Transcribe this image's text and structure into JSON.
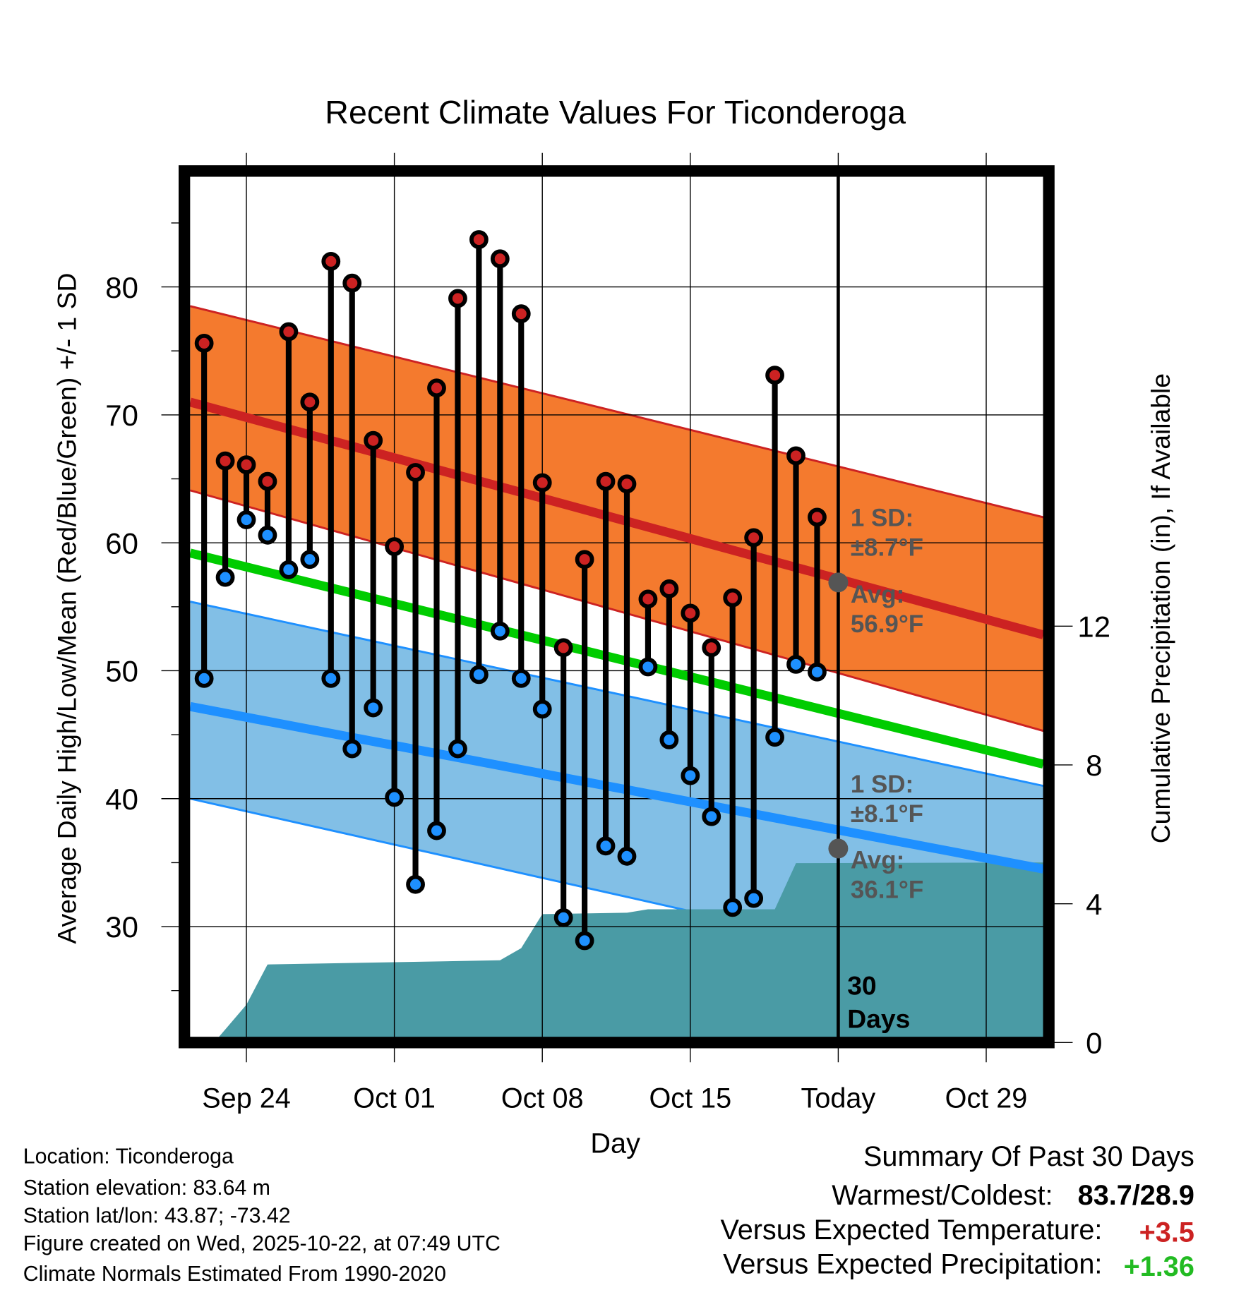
{
  "chart_data": {
    "type": "line",
    "title": "Recent Climate Values For Ticonderoga",
    "xlabel": "Day",
    "ylabel": "Average Daily High/Low/Mean (Red/Blue/Green) +/- 1 SD",
    "y2label": "Cumulative Precipitation (in), If Available",
    "x_unit": "days since Sep 22",
    "xlim": [
      -0.66,
      39.7
    ],
    "ylim": [
      21.3,
      88.6
    ],
    "y2lim": [
      0,
      25
    ],
    "grid": true,
    "x_ticks": [
      {
        "x": 2,
        "label": "Sep 24"
      },
      {
        "x": 9,
        "label": "Oct 01"
      },
      {
        "x": 16,
        "label": "Oct 08"
      },
      {
        "x": 23,
        "label": "Oct 15"
      },
      {
        "x": 30,
        "label": "Today"
      },
      {
        "x": 37,
        "label": "Oct 29"
      }
    ],
    "y_ticks": [
      30,
      40,
      50,
      60,
      70,
      80
    ],
    "y_minor_ticks": [
      25,
      35,
      45,
      55,
      65,
      75,
      85
    ],
    "y2_ticks": [
      0,
      4,
      8,
      12
    ],
    "daily": {
      "dates": [
        "Sep 22",
        "Sep 23",
        "Sep 24",
        "Sep 25",
        "Sep 26",
        "Sep 27",
        "Sep 28",
        "Sep 29",
        "Sep 30",
        "Oct 01",
        "Oct 02",
        "Oct 03",
        "Oct 04",
        "Oct 05",
        "Oct 06",
        "Oct 07",
        "Oct 08",
        "Oct 09",
        "Oct 10",
        "Oct 11",
        "Oct 12",
        "Oct 13",
        "Oct 14",
        "Oct 15",
        "Oct 16",
        "Oct 17",
        "Oct 18",
        "Oct 19",
        "Oct 20",
        "Oct 21"
      ],
      "high": [
        75.6,
        66.4,
        66.1,
        64.8,
        76.5,
        71.0,
        82.0,
        80.3,
        68.0,
        59.7,
        65.5,
        72.1,
        79.1,
        83.7,
        82.2,
        77.9,
        64.7,
        51.8,
        58.7,
        64.8,
        64.6,
        55.6,
        56.4,
        54.5,
        51.8,
        55.7,
        60.4,
        73.1,
        66.8,
        62.0
      ],
      "low": [
        49.4,
        57.3,
        61.8,
        60.6,
        57.9,
        58.7,
        49.4,
        43.9,
        47.1,
        40.1,
        33.3,
        37.5,
        43.9,
        49.7,
        53.1,
        49.4,
        47.0,
        30.7,
        28.9,
        36.3,
        35.5,
        50.3,
        44.6,
        41.8,
        38.6,
        31.5,
        32.2,
        44.8,
        50.5,
        49.9
      ]
    },
    "normals": {
      "x": [
        -0.66,
        39.7
      ],
      "high_plus_sd": [
        78.5,
        62.0
      ],
      "high_mean": [
        71.0,
        52.8
      ],
      "high_minus_sd": [
        64.1,
        45.3
      ],
      "mean": [
        59.2,
        42.7
      ],
      "low_plus_sd": [
        55.4,
        41.0
      ],
      "low_mean": [
        47.2,
        34.5
      ],
      "low_minus_sd": [
        40.0,
        25.0
      ]
    },
    "precip": {
      "x": [
        0.47,
        2,
        3,
        14,
        15,
        16,
        20,
        21,
        27,
        28,
        39.7
      ],
      "y": [
        0,
        1.09,
        2.25,
        2.37,
        2.72,
        3.7,
        3.74,
        3.84,
        3.84,
        5.17,
        5.19
      ]
    },
    "today_x": 30,
    "annotations": {
      "high_sd_line1": "1 SD:",
      "high_sd_line2": "±8.7°F",
      "high_avg_line1": "Avg:",
      "high_avg_line2": "56.9°F",
      "high_avg_value": 56.9,
      "low_sd_line1": "1 SD:",
      "low_sd_line2": "±8.1°F",
      "low_avg_line1": "Avg:",
      "low_avg_line2": "36.1°F",
      "low_avg_value": 36.1,
      "days_line1": "30",
      "days_line2": "Days"
    },
    "colors": {
      "high_band": "#f47a2e",
      "high_line": "#cc2222",
      "mean_line": "#00cc00",
      "low_band": "#82bfe6",
      "low_line": "#1e90ff",
      "precip": "#4a9ba5",
      "annotation": "#555555",
      "positive_temp": "#cc2222",
      "positive_precip": "#22bb22"
    }
  },
  "footer": {
    "location": "Location: Ticonderoga",
    "elevation": "Station elevation: 83.64 m",
    "latlon": "Station lat/lon: 43.87; -73.42",
    "created": "Figure created on Wed, 2025-10-22, at 07:49 UTC",
    "normals": "Climate Normals Estimated From 1990-2020"
  },
  "summary": {
    "title": "Summary Of Past 30 Days",
    "warmest_label": "Warmest/Coldest:",
    "warmest_value": "83.7/28.9",
    "temp_label": "Versus Expected Temperature:",
    "temp_value": "+3.5",
    "precip_label": "Versus Expected Precipitation:",
    "precip_value": "+1.36"
  }
}
